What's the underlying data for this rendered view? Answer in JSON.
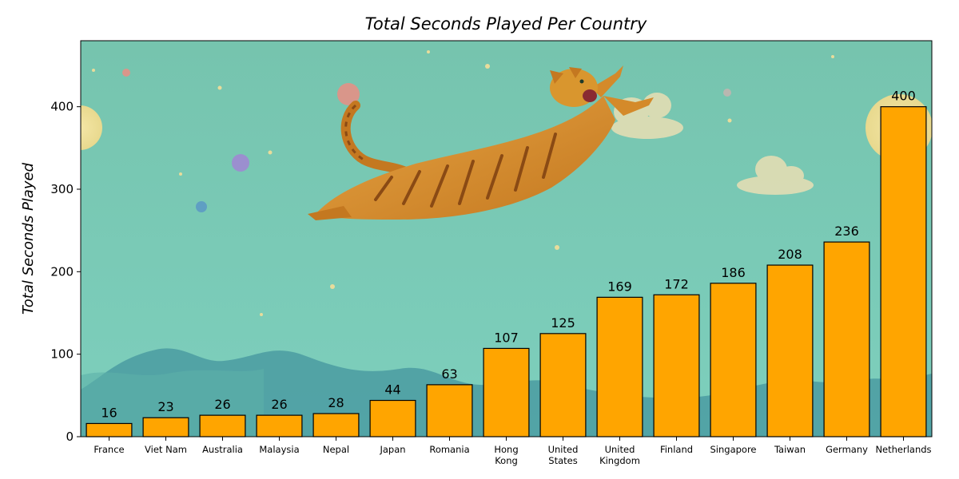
{
  "chart_data": {
    "type": "bar",
    "title": "Total Seconds Played Per Country",
    "xlabel": "",
    "ylabel": "Total Seconds Played",
    "ylim": [
      0,
      480
    ],
    "yticks": [
      0,
      100,
      200,
      300,
      400
    ],
    "grid": false,
    "categories": [
      [
        "France"
      ],
      [
        "Viet Nam"
      ],
      [
        "Australia"
      ],
      [
        "Malaysia"
      ],
      [
        "Nepal"
      ],
      [
        "Japan"
      ],
      [
        "Romania"
      ],
      [
        "Hong",
        "Kong"
      ],
      [
        "United",
        "States"
      ],
      [
        "United",
        "Kingdom"
      ],
      [
        "Finland"
      ],
      [
        "Singapore"
      ],
      [
        "Taiwan"
      ],
      [
        "Germany"
      ],
      [
        "Netherlands"
      ]
    ],
    "values": [
      16,
      23,
      26,
      26,
      28,
      44,
      63,
      107,
      125,
      169,
      172,
      186,
      208,
      236,
      400
    ],
    "colors": {
      "bar_fill": "#ffa500",
      "bar_edge": "#000000",
      "sky_top": "#76c4ae",
      "sky_bottom": "#7dcfbd",
      "hills": "#4e9ea3",
      "cat_body": "#d48a2a",
      "cat_stripes": "#8a4a14"
    },
    "background_image": "cartoon sky with flying orange tabby cat, clouds, moons and stars"
  }
}
